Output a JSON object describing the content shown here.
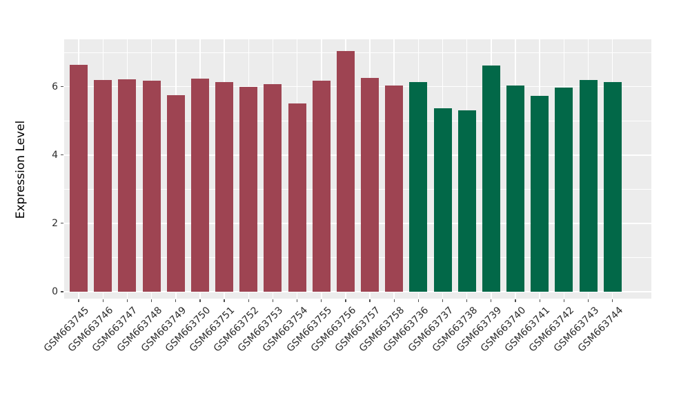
{
  "chart_data": {
    "type": "bar",
    "title": "",
    "xlabel": "",
    "ylabel": "Expression Level",
    "yticks": [
      0,
      2,
      4,
      6
    ],
    "yminorticks": [
      1,
      3,
      5,
      7
    ],
    "ylim": [
      -0.2,
      7.4
    ],
    "grid": "on",
    "legend_position": "none",
    "panel_bg_color": "#ECECEC",
    "grid_color": "#FFFFFF",
    "group_colors": {
      "red_group": "#9E4452",
      "green_group": "#026848"
    },
    "categories": [
      "GSM663745",
      "GSM663746",
      "GSM663747",
      "GSM663748",
      "GSM663749",
      "GSM663750",
      "GSM663751",
      "GSM663752",
      "GSM663753",
      "GSM663754",
      "GSM663755",
      "GSM663756",
      "GSM663757",
      "GSM663758",
      "GSM663736",
      "GSM663737",
      "GSM663738",
      "GSM663739",
      "GSM663740",
      "GSM663741",
      "GSM663742",
      "GSM663743",
      "GSM663744"
    ],
    "values": [
      6.65,
      6.19,
      6.22,
      6.17,
      5.75,
      6.23,
      6.14,
      6.0,
      6.07,
      5.51,
      6.18,
      7.05,
      6.26,
      6.03,
      6.13,
      5.37,
      5.3,
      6.62,
      6.03,
      5.73,
      5.98,
      6.2,
      6.14
    ],
    "groups": [
      "red_group",
      "red_group",
      "red_group",
      "red_group",
      "red_group",
      "red_group",
      "red_group",
      "red_group",
      "red_group",
      "red_group",
      "red_group",
      "red_group",
      "red_group",
      "red_group",
      "green_group",
      "green_group",
      "green_group",
      "green_group",
      "green_group",
      "green_group",
      "green_group",
      "green_group",
      "green_group"
    ]
  }
}
